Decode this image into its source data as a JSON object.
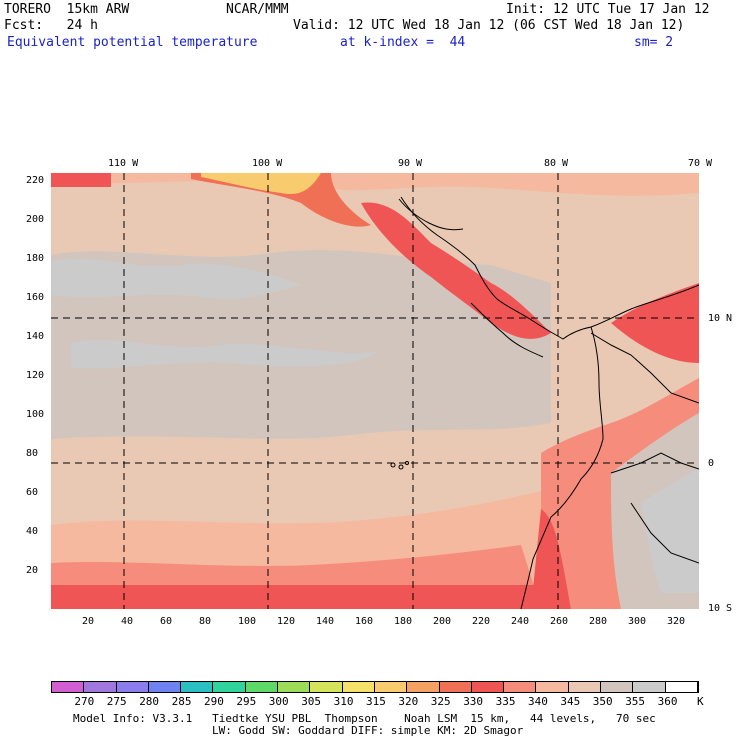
{
  "header": {
    "model": "TORERO  15km ARW",
    "org": "NCAR/MMM",
    "init": "Init: 12 UTC Tue 17 Jan 12",
    "fcst": "Fcst:   24 h",
    "valid": "Valid: 12 UTC Wed 18 Jan 12 (06 CST Wed 18 Jan 12)",
    "field": "Equivalent potential temperature",
    "level": "at k-index =  44",
    "smooth": "sm= 2"
  },
  "map": {
    "lon_labels": [
      "110 W",
      "100 W",
      "90 W",
      "80 W",
      "70 W"
    ],
    "lat_labels": [
      "10 N",
      "0",
      "10 S"
    ],
    "y_ticks": [
      "220",
      "200",
      "180",
      "160",
      "140",
      "120",
      "100",
      "80",
      "60",
      "40",
      "20"
    ],
    "x_ticks": [
      "20",
      "40",
      "60",
      "80",
      "100",
      "120",
      "140",
      "160",
      "180",
      "200",
      "220",
      "240",
      "260",
      "280",
      "300",
      "320"
    ]
  },
  "colorbar": {
    "labels": [
      "270",
      "275",
      "280",
      "285",
      "290",
      "295",
      "300",
      "305",
      "310",
      "315",
      "320",
      "325",
      "330",
      "335",
      "340",
      "345",
      "350",
      "355",
      "360"
    ],
    "unit": "K",
    "colors": [
      "#d25fd2",
      "#a077dc",
      "#8c7ded",
      "#6e83f0",
      "#2ac0c2",
      "#2fd39b",
      "#5fd86a",
      "#9ddc59",
      "#d4e35a",
      "#f5e06a",
      "#f7cb6e",
      "#f5a163",
      "#f07055",
      "#f05555",
      "#f58c7c",
      "#f5b9a0",
      "#e9c9b4",
      "#d2c5bd",
      "#cbcbcb",
      "#ffffff"
    ]
  },
  "footer": {
    "line1": "Model Info: V3.3.1   Tiedtke YSU PBL  Thompson    Noah LSM  15 km,   44 levels,   70 sec",
    "line2": "LW: Godd SW: Goddard DIFF: simple KM: 2D Smagor"
  }
}
